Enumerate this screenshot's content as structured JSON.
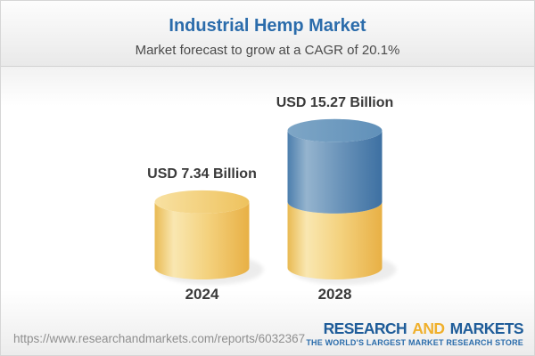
{
  "header": {
    "title": "Industrial Hemp Market",
    "subtitle": "Market forecast to grow at a CAGR of 20.1%"
  },
  "chart_data": {
    "type": "bar",
    "subtype": "3d-cylinder-stacked",
    "title": "Industrial Hemp Market",
    "subtitle": "Market forecast to grow at a CAGR of 20.1%",
    "unit": "USD Billion",
    "cagr_percent": 20.1,
    "categories": [
      "2024",
      "2028"
    ],
    "values": [
      7.34,
      15.27
    ],
    "bars": [
      {
        "category": "2024",
        "value": 7.34,
        "value_label": "USD 7.34 Billion",
        "segments": [
          {
            "name": "market-size-2024",
            "value": 7.34,
            "color": "gold"
          }
        ]
      },
      {
        "category": "2028",
        "value": 15.27,
        "value_label": "USD 15.27 Billion",
        "segments": [
          {
            "name": "base-2024",
            "value": 7.34,
            "color": "gold"
          },
          {
            "name": "growth-2024-2028",
            "value": 7.93,
            "color": "blue"
          }
        ]
      }
    ],
    "colors": {
      "gold": "#f0c561",
      "blue": "#4e80ae"
    },
    "ylim": [
      0,
      16
    ],
    "grid": false,
    "legend": false
  },
  "footer": {
    "url": "https://www.researchandmarkets.com/reports/6032367",
    "logo": {
      "part1": "RESEARCH",
      "part2": "AND",
      "part3": "MARKETS",
      "tagline": "THE WORLD'S LARGEST MARKET RESEARCH STORE"
    }
  }
}
